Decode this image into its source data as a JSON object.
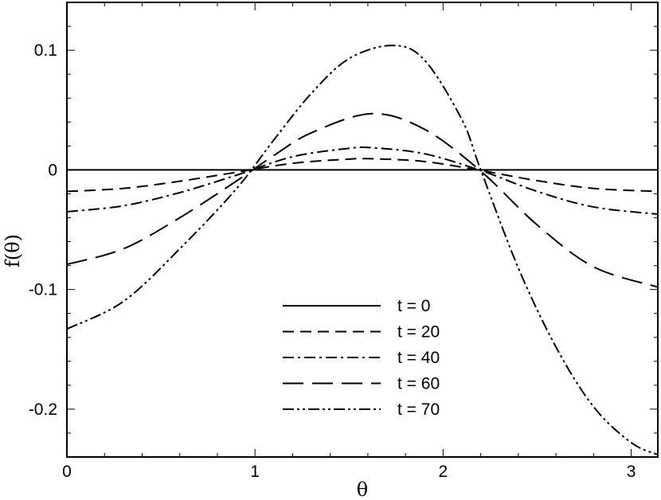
{
  "chart_data": {
    "type": "line",
    "title": "",
    "xlabel": "θ",
    "ylabel": "f(θ)",
    "xlim": [
      0,
      3.14159
    ],
    "ylim": [
      -0.24,
      0.14
    ],
    "x_ticks": [
      0,
      1,
      2,
      3
    ],
    "x_tick_labels": [
      "0",
      "1",
      "2",
      "3"
    ],
    "y_ticks": [
      -0.2,
      -0.1,
      0,
      0.1
    ],
    "y_tick_labels": [
      "-0.2",
      "-0.1",
      "0",
      "0.1"
    ],
    "grid": false,
    "legend_position": "bottom-center",
    "series": [
      {
        "name": "t = 0",
        "style": "solid",
        "x": [
          0,
          0.5,
          1.0,
          1.5,
          2.0,
          2.5,
          3.14159
        ],
        "y": [
          0,
          0,
          0,
          0,
          0,
          0,
          0
        ]
      },
      {
        "name": "t = 20",
        "style": "dash",
        "x": [
          0,
          0.3,
          0.6,
          0.9,
          1.2,
          1.5,
          1.62,
          1.9,
          2.2,
          2.5,
          2.8,
          3.14159
        ],
        "y": [
          -0.018,
          -0.0155,
          -0.0095,
          -0.002,
          0.0055,
          0.009,
          0.0093,
          0.007,
          -0.0005,
          -0.009,
          -0.0155,
          -0.018
        ]
      },
      {
        "name": "t = 40",
        "style": "dash-dot",
        "x": [
          0,
          0.3,
          0.6,
          0.9,
          1.2,
          1.5,
          1.62,
          1.9,
          2.2,
          2.5,
          2.8,
          3.14159
        ],
        "y": [
          -0.035,
          -0.03,
          -0.019,
          -0.0045,
          0.011,
          0.018,
          0.0185,
          0.0135,
          -0.0005,
          -0.018,
          -0.031,
          -0.037
        ]
      },
      {
        "name": "t = 60",
        "style": "long-dash",
        "x": [
          0,
          0.3,
          0.6,
          0.9,
          1.1,
          1.3,
          1.62,
          1.9,
          2.2,
          2.5,
          2.8,
          3.14159
        ],
        "y": [
          -0.079,
          -0.066,
          -0.04,
          -0.0095,
          0.012,
          0.031,
          0.047,
          0.034,
          -0.001,
          -0.046,
          -0.081,
          -0.098
        ]
      },
      {
        "name": "t = 70",
        "style": "dash-dot-dot",
        "x": [
          0,
          0.3,
          0.6,
          0.9,
          1.1,
          1.3,
          1.5,
          1.73,
          1.9,
          2.1,
          2.2,
          2.4,
          2.6,
          2.8,
          3.0,
          3.14159
        ],
        "y": [
          -0.133,
          -0.11,
          -0.066,
          -0.016,
          0.025,
          0.064,
          0.093,
          0.104,
          0.092,
          0.042,
          0.0,
          -0.082,
          -0.148,
          -0.198,
          -0.228,
          -0.238
        ]
      }
    ]
  }
}
